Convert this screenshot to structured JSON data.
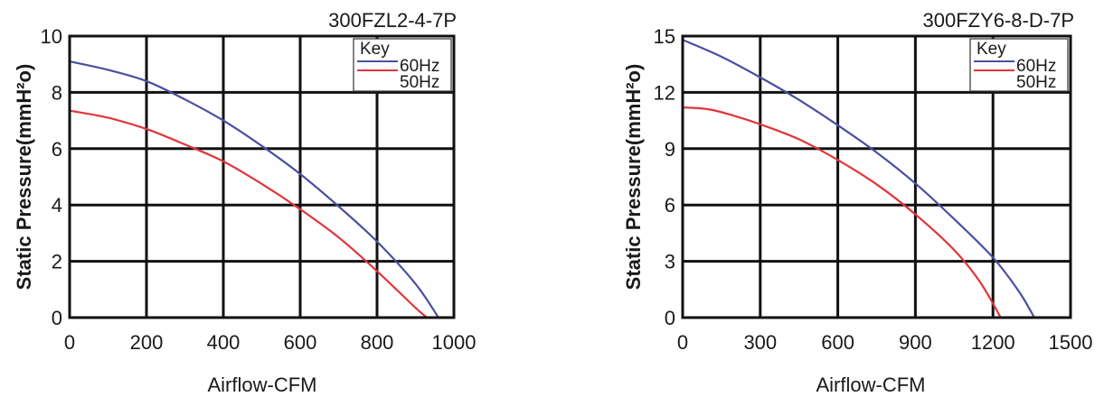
{
  "colors": {
    "series_60hz": "#4a4fa0",
    "series_50hz": "#e0353a"
  },
  "chart_data": [
    {
      "type": "line",
      "title": "300FZL2-4-7P",
      "xlabel": "Airflow-CFM",
      "ylabel": "Static Pressure(mmH²o)",
      "xlim": [
        0,
        1000
      ],
      "ylim": [
        0,
        10
      ],
      "xticks": [
        0,
        200,
        400,
        600,
        800,
        1000
      ],
      "yticks": [
        0,
        2,
        4,
        6,
        8,
        10
      ],
      "x_tick_labels": [
        "0",
        "200",
        "400",
        "600",
        "800",
        "1000"
      ],
      "y_tick_labels": [
        "0",
        "2",
        "4",
        "6",
        "8",
        "10"
      ],
      "grid": true,
      "legend_position": "top-right",
      "legend_title": "Key",
      "series": [
        {
          "name": "60Hz",
          "color": "#4a4fa0",
          "x": [
            0,
            100,
            200,
            300,
            400,
            500,
            600,
            700,
            800,
            900,
            960
          ],
          "y": [
            9.1,
            8.8,
            8.4,
            7.75,
            7.0,
            6.1,
            5.1,
            3.95,
            2.7,
            1.2,
            0
          ]
        },
        {
          "name": "50Hz",
          "color": "#e0353a",
          "x": [
            0,
            100,
            200,
            300,
            400,
            500,
            600,
            700,
            800,
            900,
            930
          ],
          "y": [
            7.35,
            7.1,
            6.7,
            6.15,
            5.55,
            4.75,
            3.85,
            2.85,
            1.65,
            0.35,
            0
          ]
        }
      ]
    },
    {
      "type": "line",
      "title": "300FZY6-8-D-7P",
      "xlabel": "Airflow-CFM",
      "ylabel": "Static Pressure(mmH²o)",
      "xlim": [
        0,
        1500
      ],
      "ylim": [
        0,
        15
      ],
      "xticks": [
        0,
        300,
        600,
        900,
        1200,
        1500
      ],
      "yticks": [
        0,
        3,
        6,
        9,
        12,
        15
      ],
      "x_tick_labels": [
        "0",
        "300",
        "600",
        "900",
        "1200",
        "1500"
      ],
      "y_tick_labels": [
        "0",
        "3",
        "6",
        "9",
        "12",
        "15"
      ],
      "grid": true,
      "legend_position": "top-right",
      "legend_title": "Key",
      "series": [
        {
          "name": "60Hz",
          "color": "#4a4fa0",
          "x": [
            0,
            150,
            300,
            450,
            600,
            750,
            900,
            1050,
            1200,
            1300,
            1360
          ],
          "y": [
            14.8,
            13.9,
            12.8,
            11.6,
            10.25,
            8.8,
            7.15,
            5.25,
            3.2,
            1.4,
            0
          ]
        },
        {
          "name": "50Hz",
          "color": "#e0353a",
          "x": [
            0,
            100,
            200,
            300,
            450,
            600,
            750,
            900,
            1050,
            1150,
            1230
          ],
          "y": [
            11.2,
            11.1,
            10.75,
            10.3,
            9.5,
            8.4,
            7.1,
            5.5,
            3.6,
            1.9,
            0
          ]
        }
      ]
    }
  ]
}
